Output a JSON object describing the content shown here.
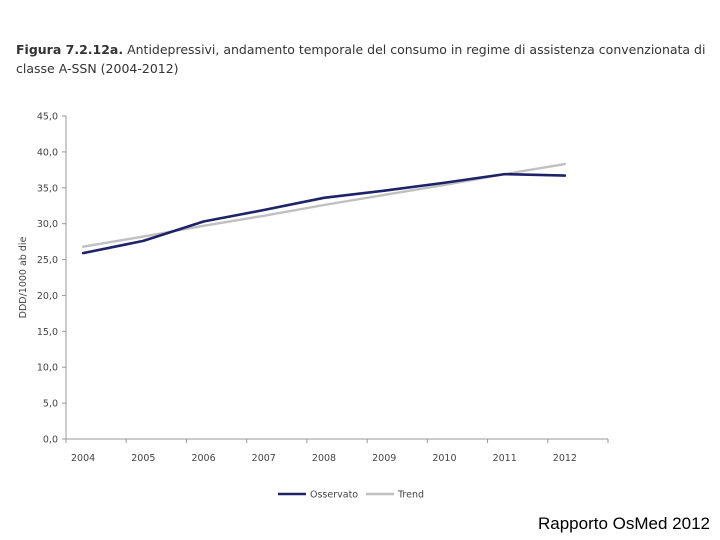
{
  "figure": {
    "label": "Figura 7.2.12a.",
    "caption": "Antidepressivi, andamento temporale del consumo in regime di assistenza convenzionata di classe A-SSN (2004-2012)"
  },
  "footer": "Rapporto OsMed 2012",
  "chart_data": {
    "type": "line",
    "title": "Figura 7.2.12a. Antidepressivi, andamento temporale del consumo in regime di assistenza convenzionata di classe A-SSN (2004-2012)",
    "xlabel": "",
    "ylabel": "DDD/1000 ab die",
    "categories": [
      "2004",
      "2005",
      "2006",
      "2007",
      "2008",
      "2009",
      "2010",
      "2011",
      "2012"
    ],
    "ylim": [
      0,
      45
    ],
    "yticks": [
      "0,0",
      "5,0",
      "10,0",
      "15,0",
      "20,0",
      "25,0",
      "30,0",
      "35,0",
      "40,0",
      "45,0"
    ],
    "grid": false,
    "legend_position": "bottom",
    "series": [
      {
        "name": "Osservato",
        "color": "#1f2169",
        "values": [
          25.9,
          27.6,
          30.3,
          31.9,
          33.6,
          34.6,
          35.7,
          36.9,
          36.7
        ]
      },
      {
        "name": "Trend",
        "color": "#c0c0c0",
        "values": [
          26.8,
          28.2,
          29.7,
          31.1,
          32.6,
          34.0,
          35.4,
          36.9,
          38.3
        ]
      }
    ]
  }
}
